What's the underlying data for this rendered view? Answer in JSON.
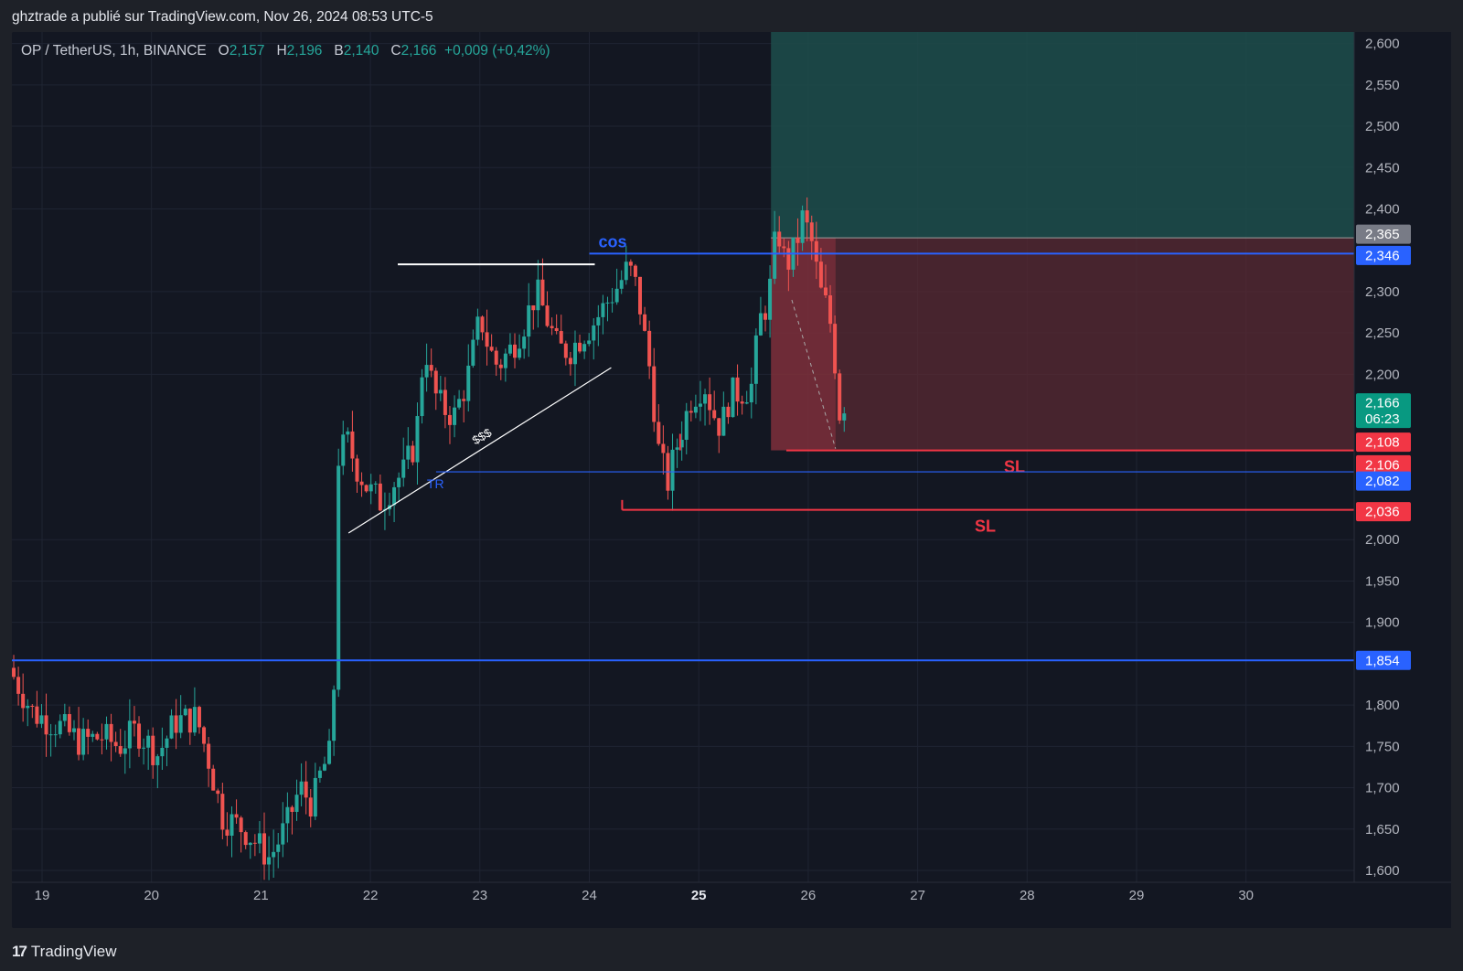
{
  "header": {
    "attribution": "ghztrade a publié sur TradingView.com, Nov 26, 2024 08:53 UTC-5"
  },
  "legend": {
    "symbol": "OP / TetherUS, 1h, BINANCE",
    "o_label": "O",
    "o_value": "2,157",
    "h_label": "H",
    "h_value": "2,196",
    "b_label": "B",
    "b_value": "2,140",
    "c_label": "C",
    "c_value": "2,166",
    "change": "+0,009 (+0,42%)"
  },
  "footer": {
    "brand": "TradingView",
    "logo": "17"
  },
  "colors": {
    "background": "#131722",
    "up": "#26a69a",
    "down": "#ef5350",
    "blue_line": "#2962ff",
    "red_line": "#f23645",
    "tp_zone": "#1d4d4b",
    "sl_zone": "#5a2a33"
  },
  "chart_data": {
    "type": "candlestick",
    "ylim": [
      1600,
      2600
    ],
    "y_ticks": [
      "2,600",
      "2,550",
      "2,500",
      "2,450",
      "2,400",
      "2,300",
      "2,250",
      "2,200",
      "2,000",
      "1,950",
      "1,900",
      "1,800",
      "1,750",
      "1,700",
      "1,650",
      "1,600"
    ],
    "x_ticks": [
      {
        "label": "19",
        "day": 19
      },
      {
        "label": "20",
        "day": 20
      },
      {
        "label": "21",
        "day": 21
      },
      {
        "label": "22",
        "day": 22
      },
      {
        "label": "23",
        "day": 23
      },
      {
        "label": "24",
        "day": 24
      },
      {
        "label": "25",
        "day": 25,
        "bold": true
      },
      {
        "label": "26",
        "day": 26
      },
      {
        "label": "27",
        "day": 27
      },
      {
        "label": "28",
        "day": 28
      },
      {
        "label": "29",
        "day": 29
      },
      {
        "label": "30",
        "day": 30
      }
    ],
    "candle_keypoints": [
      [
        18.72,
        1845
      ],
      [
        19.0,
        1790
      ],
      [
        19.3,
        1775
      ],
      [
        19.55,
        1755
      ],
      [
        19.8,
        1762
      ],
      [
        20.0,
        1750
      ],
      [
        20.2,
        1770
      ],
      [
        20.45,
        1740
      ],
      [
        20.65,
        1780
      ],
      [
        20.9,
        1785
      ],
      [
        21.05,
        1730
      ],
      [
        21.2,
        1665
      ],
      [
        21.45,
        1650
      ],
      [
        21.75,
        1615
      ],
      [
        21.95,
        1655
      ],
      [
        22.1,
        1700
      ],
      [
        22.25,
        1680
      ],
      [
        22.35,
        1720
      ],
      [
        22.45,
        1740
      ],
      [
        22.5,
        1830
      ],
      [
        22.55,
        2100
      ],
      [
        22.65,
        2120
      ],
      [
        22.75,
        2090
      ],
      [
        22.9,
        2060
      ],
      [
        23.05,
        2045
      ],
      [
        23.2,
        2070
      ],
      [
        23.3,
        2080
      ],
      [
        23.45,
        2120
      ],
      [
        23.55,
        2240
      ],
      [
        23.65,
        2180
      ],
      [
        23.75,
        2160
      ],
      [
        23.9,
        2150
      ],
      [
        24.05,
        2195
      ],
      [
        24.2,
        2270
      ],
      [
        24.3,
        2230
      ],
      [
        24.4,
        2210
      ],
      [
        24.55,
        2230
      ],
      [
        24.7,
        2260
      ],
      [
        24.85,
        2300
      ],
      [
        25.0,
        2260
      ],
      [
        25.1,
        2230
      ],
      [
        25.25,
        2230
      ],
      [
        25.4,
        2250
      ],
      [
        25.5,
        2260
      ],
      [
        25.6,
        2275
      ],
      [
        25.72,
        2295
      ],
      [
        25.82,
        2310
      ],
      [
        25.92,
        2330
      ],
      [
        26.03,
        2300
      ],
      [
        26.1,
        2250
      ],
      [
        26.18,
        2200
      ],
      [
        26.28,
        2100
      ],
      [
        26.38,
        2070
      ],
      [
        26.5,
        2120
      ],
      [
        26.65,
        2170
      ],
      [
        26.8,
        2190
      ],
      [
        26.9,
        2155
      ],
      [
        27.0,
        2135
      ],
      [
        27.1,
        2175
      ],
      [
        27.25,
        2180
      ],
      [
        27.35,
        2185
      ],
      [
        27.45,
        2265
      ],
      [
        27.55,
        2290
      ],
      [
        27.65,
        2380
      ],
      [
        27.75,
        2330
      ],
      [
        27.85,
        2350
      ],
      [
        27.95,
        2390
      ],
      [
        28.05,
        2360
      ],
      [
        28.15,
        2300
      ],
      [
        28.25,
        2275
      ],
      [
        28.3,
        2240
      ],
      [
        28.38,
        2150
      ],
      [
        28.43,
        2166
      ]
    ],
    "lines": [
      {
        "name": "cos-line",
        "price": 2346,
        "from": 24.0,
        "to": 31.0,
        "color": "#2962ff",
        "label": "cos"
      },
      {
        "name": "sl-line-upper",
        "price": 2108,
        "from": 25.8,
        "to": 31.0,
        "color": "#f23645",
        "label": "SL"
      },
      {
        "name": "tr-line",
        "price": 2082,
        "from": 22.6,
        "to": 31.0,
        "color": "#2962ff",
        "label": "TR"
      },
      {
        "name": "sl-line-lower",
        "price": 2036,
        "from": 24.3,
        "to": 31.0,
        "color": "#f23645",
        "label": "SL"
      },
      {
        "name": "support-line",
        "price": 1854,
        "from": 18.72,
        "to": 31.0,
        "color": "#2962ff"
      }
    ],
    "trendline_label": "$$$",
    "resistance_top": {
      "price": 2333,
      "from": 22.25,
      "to": 24.05
    },
    "trendline": {
      "from": [
        21.8,
        2008
      ],
      "to": [
        24.2,
        2208
      ]
    },
    "position": {
      "start": 25.66,
      "entry": 2365,
      "target": 2615,
      "stop": 2108
    },
    "price_tags": [
      {
        "value": "2,365",
        "price": 2365,
        "type": "gray"
      },
      {
        "value": "2,346",
        "price": 2346,
        "type": "blue"
      },
      {
        "value": "2,166",
        "sub": "06:23",
        "price": 2166,
        "type": "green"
      },
      {
        "value": "2,108",
        "price": 2108,
        "type": "red"
      },
      {
        "value": "2,106",
        "price": 2106,
        "type": "red"
      },
      {
        "value": "2,082",
        "price": 2082,
        "type": "blue"
      },
      {
        "value": "2,036",
        "price": 2036,
        "type": "red"
      },
      {
        "value": "1,854",
        "price": 1854,
        "type": "blue"
      }
    ]
  }
}
